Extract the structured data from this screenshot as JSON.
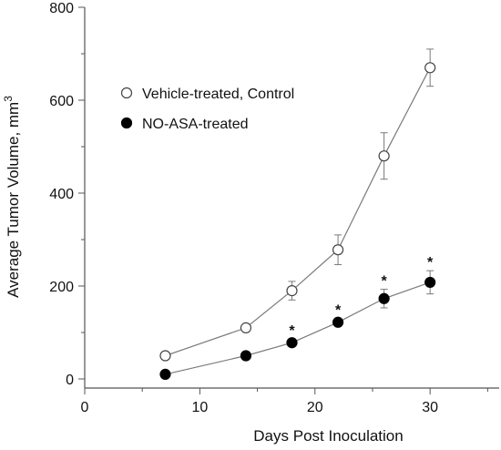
{
  "chart_data": {
    "type": "line",
    "xlabel": "Days Post Inoculation",
    "ylabel": "Average Tumor Volume, mm",
    "ylabel_superscript": "3",
    "xlim": [
      0,
      36
    ],
    "ylim": [
      0,
      800
    ],
    "x_ticks": [
      0,
      10,
      20,
      30
    ],
    "y_ticks": [
      0,
      200,
      400,
      600,
      800
    ],
    "x_tick_labels": [
      "0",
      "10",
      "20",
      "30"
    ],
    "y_tick_labels": [
      "0",
      "200",
      "400",
      "600",
      "800"
    ],
    "legend_position": "upper-left",
    "series": [
      {
        "name": "Vehicle-treated, Control",
        "marker": "open-circle",
        "color": "#333333",
        "x": [
          7,
          14,
          18,
          22,
          26,
          30
        ],
        "y": [
          50,
          110,
          190,
          278,
          480,
          670
        ],
        "err": [
          0,
          0,
          20,
          32,
          50,
          40
        ]
      },
      {
        "name": "NO-ASA-treated",
        "marker": "filled-circle",
        "color": "#000000",
        "x": [
          7,
          14,
          18,
          22,
          26,
          30
        ],
        "y": [
          10,
          50,
          78,
          122,
          173,
          208
        ],
        "err": [
          0,
          0,
          8,
          8,
          20,
          25
        ],
        "significance_marker": "*",
        "significant": [
          false,
          false,
          true,
          true,
          true,
          true
        ]
      }
    ]
  }
}
